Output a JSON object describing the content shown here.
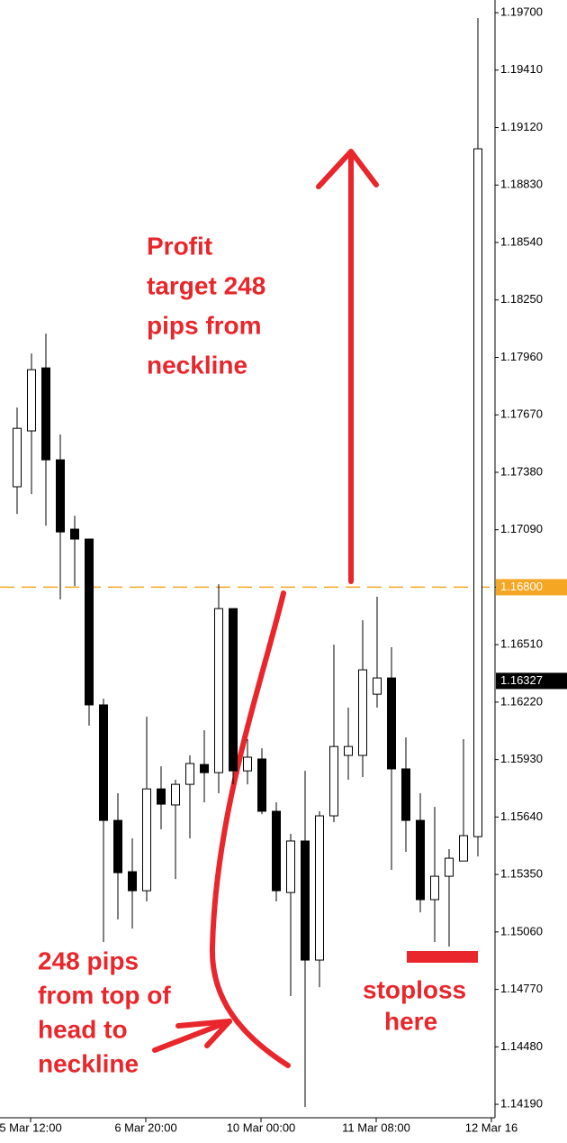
{
  "chart_data": {
    "type": "candlestick",
    "candles": {
      "open": [
        1.17307,
        1.17589,
        1.17907,
        1.17443,
        1.17093,
        1.17043,
        1.16206,
        1.15623,
        1.15364,
        1.15268,
        1.15782,
        1.15701,
        1.15805,
        1.15905,
        1.15864,
        1.16692,
        1.15873,
        1.15933,
        1.15669,
        1.15259,
        1.15519,
        1.14918,
        1.15646,
        1.15951,
        1.15951,
        1.1626,
        1.16342,
        1.15883,
        1.15623,
        1.15223,
        1.15341,
        1.15418,
        1.15541
      ],
      "high": [
        1.17707,
        1.1798,
        1.1808,
        1.17571,
        1.17161,
        1.17043,
        1.16237,
        1.1576,
        1.15532,
        1.16146,
        1.15896,
        1.15828,
        1.15951,
        1.16078,
        1.16815,
        1.16692,
        1.16033,
        1.15987,
        1.15714,
        1.15555,
        1.15873,
        1.15669,
        1.1651,
        1.16192,
        1.16633,
        1.16752,
        1.16497,
        1.16042,
        1.1576,
        1.15691,
        1.15478,
        1.16033,
        1.19673
      ],
      "low": [
        1.1717,
        1.1727,
        1.17111,
        1.16738,
        1.16806,
        1.16101,
        1.15009,
        1.15123,
        1.15077,
        1.15214,
        1.15578,
        1.15327,
        1.15532,
        1.15714,
        1.1576,
        1.15805,
        1.15805,
        1.15655,
        1.15214,
        1.14736,
        1.14176,
        1.14781,
        1.15614,
        1.15828,
        1.15842,
        1.16192,
        1.15373,
        1.15464,
        1.15159,
        1.15009,
        1.14986,
        1.15418,
        1.15441
      ],
      "close": [
        1.17602,
        1.17898,
        1.17443,
        1.17079,
        1.17043,
        1.16206,
        1.15623,
        1.15359,
        1.15268,
        1.15782,
        1.15705,
        1.15805,
        1.1591,
        1.15864,
        1.16692,
        1.15873,
        1.15942,
        1.15669,
        1.15268,
        1.15519,
        1.14918,
        1.15646,
        1.15996,
        1.15996,
        1.16383,
        1.16342,
        1.15883,
        1.15623,
        1.15223,
        1.15341,
        1.15432,
        1.15546,
        1.19013
      ]
    },
    "ylim": [
      1.14122,
      1.19764
    ],
    "yticks": [
      {
        "value": 1.197,
        "label": "1.19700"
      },
      {
        "value": 1.1941,
        "label": "1.19410"
      },
      {
        "value": 1.1912,
        "label": "1.19120"
      },
      {
        "value": 1.1883,
        "label": "1.18830"
      },
      {
        "value": 1.1854,
        "label": "1.18540"
      },
      {
        "value": 1.1825,
        "label": "1.18250"
      },
      {
        "value": 1.1796,
        "label": "1.17960"
      },
      {
        "value": 1.1767,
        "label": "1.17670"
      },
      {
        "value": 1.1738,
        "label": "1.17380"
      },
      {
        "value": 1.1709,
        "label": "1.17090"
      },
      {
        "value": 1.168,
        "label": "1.16800"
      },
      {
        "value": 1.1651,
        "label": "1.16510"
      },
      {
        "value": 1.1622,
        "label": "1.16220"
      },
      {
        "value": 1.1593,
        "label": "1.15930"
      },
      {
        "value": 1.1564,
        "label": "1.15640"
      },
      {
        "value": 1.1535,
        "label": "1.15350"
      },
      {
        "value": 1.1506,
        "label": "1.15060"
      },
      {
        "value": 1.1477,
        "label": "1.14770"
      },
      {
        "value": 1.1448,
        "label": "1.14480"
      },
      {
        "value": 1.1419,
        "label": "1.14190"
      }
    ],
    "xaxis_labels": [
      "5 Mar 12:00",
      "6 Mar 20:00",
      "10 Mar 00:00",
      "11 Mar 08:00",
      "12 Mar 16"
    ],
    "neckline": {
      "value": 1.168,
      "label": "1.16800",
      "color": "#f5a623"
    },
    "current_price": 1.16327,
    "annotations": {
      "profit": [
        "Profit",
        "target 248",
        "pips from",
        "neckline"
      ],
      "head": [
        "248 pips",
        "from top of",
        "head to",
        "neckline"
      ],
      "stoploss": [
        "stoploss",
        "here"
      ]
    }
  }
}
